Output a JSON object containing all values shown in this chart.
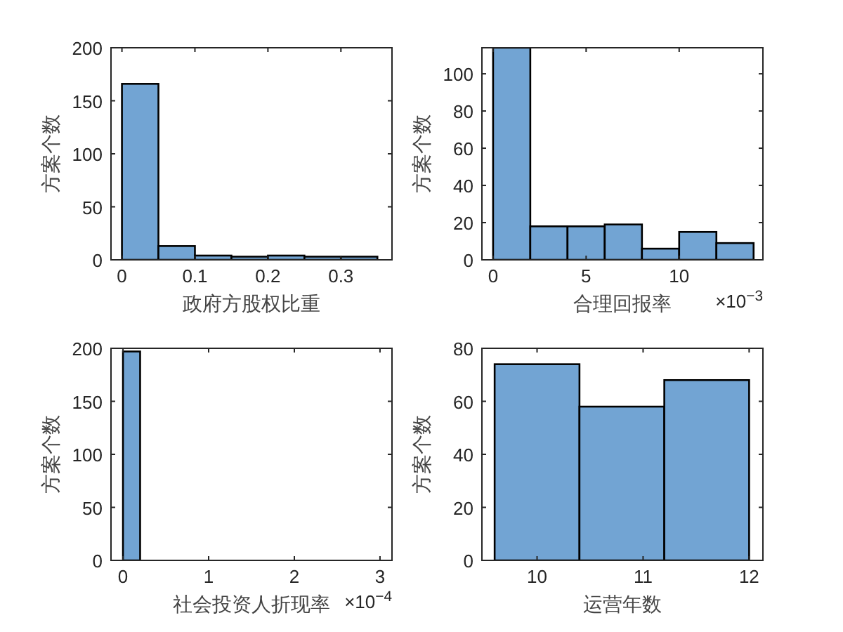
{
  "chart_data": [
    {
      "type": "histogram",
      "xlabel": "政府方股权比重",
      "ylabel": "方案个数",
      "color": "#72a4d3",
      "bins": [
        0,
        0.05,
        0.1,
        0.15,
        0.2,
        0.25,
        0.3,
        0.35
      ],
      "values": [
        166,
        13,
        4,
        3,
        4,
        3,
        3
      ],
      "xlim": [
        -0.015,
        0.37
      ],
      "ylim": [
        0,
        200
      ],
      "xticks": [
        0,
        0.1,
        0.2,
        0.3
      ],
      "yticks": [
        0,
        50,
        100,
        150,
        200
      ],
      "grid": false
    },
    {
      "type": "histogram",
      "xlabel": "合理回报率",
      "ylabel": "方案个数",
      "color": "#72a4d3",
      "bins": [
        0,
        2,
        4,
        6,
        8,
        10,
        12,
        14
      ],
      "values": [
        114,
        18,
        18,
        19,
        6,
        15,
        9
      ],
      "xlim": [
        -0.6,
        14.5
      ],
      "ylim": [
        0,
        114
      ],
      "xticks": [
        0,
        5,
        10
      ],
      "yticks": [
        0,
        20,
        40,
        60,
        80,
        100
      ],
      "annotations": [
        "×10$^{−3}$"
      ],
      "grid": false
    },
    {
      "type": "histogram",
      "xlabel": "社会投资人折现率",
      "ylabel": "方案个数",
      "color": "#72a4d3",
      "bins": [
        0,
        0.2
      ],
      "values": [
        197
      ],
      "xlim": [
        -0.14,
        3.14
      ],
      "ylim": [
        0,
        200
      ],
      "xticks": [
        0,
        1,
        2,
        3
      ],
      "yticks": [
        0,
        50,
        100,
        150,
        200
      ],
      "annotations": [
        "×10$^{−4}$"
      ],
      "grid": false
    },
    {
      "type": "histogram",
      "xlabel": "运营年数",
      "ylabel": "方案个数",
      "color": "#72a4d3",
      "bins": [
        9.6,
        10.4,
        11.2,
        12.0
      ],
      "values": [
        74,
        58,
        68
      ],
      "xlim": [
        9.48,
        12.13
      ],
      "ylim": [
        0,
        80
      ],
      "xticks": [
        10,
        11,
        12
      ],
      "yticks": [
        0,
        20,
        40,
        60,
        80
      ],
      "grid": false
    }
  ]
}
